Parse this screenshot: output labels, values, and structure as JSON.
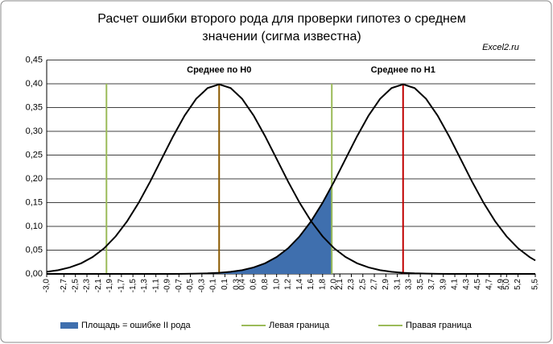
{
  "chart_data": {
    "type": "line",
    "title": [
      "Расчет ошибки второго рода для проверки гипотез о среднем",
      "значении (сигма известна)"
    ],
    "watermark": "Excel2.ru",
    "x": [
      -3.0,
      -2.8,
      -2.6,
      -2.4,
      -2.2,
      -2.0,
      -1.8,
      -1.6,
      -1.4,
      -1.2,
      -1.0,
      -0.8,
      -0.6,
      -0.4,
      -0.2,
      0,
      0.2,
      0.4,
      0.6,
      0.8,
      1.0,
      1.2,
      1.4,
      1.6,
      1.8,
      2.0,
      2.2,
      2.4,
      2.6,
      2.8,
      3.0,
      3.2,
      3.4,
      3.6,
      3.8,
      4.0,
      4.2,
      4.4,
      4.6,
      4.8,
      5.0,
      5.2,
      5.4,
      5.5
    ],
    "series": [
      {
        "color": "#000000",
        "values": [
          0.0044,
          0.0079,
          0.0136,
          0.0224,
          0.0355,
          0.054,
          0.079,
          0.1109,
          0.1497,
          0.1942,
          0.242,
          0.2897,
          0.3332,
          0.3683,
          0.391,
          0.3989,
          0.391,
          0.3683,
          0.3332,
          0.2897,
          0.242,
          0.1942,
          0.1497,
          0.1109,
          0.079,
          0.054,
          0.0355,
          0.0224,
          0.0136,
          0.0079,
          0.0044,
          0.0024,
          0.0012,
          0.0006,
          0.0003,
          0.0001,
          0.0001,
          0,
          0,
          0,
          0,
          0,
          0,
          0
        ]
      },
      {
        "color": "#000000",
        "values": [
          0,
          0,
          0,
          0,
          0,
          0,
          0,
          0,
          0,
          0,
          0.0001,
          0.0001,
          0.0003,
          0.0006,
          0.0012,
          0.0024,
          0.0044,
          0.0079,
          0.0136,
          0.0224,
          0.0355,
          0.054,
          0.079,
          0.1109,
          0.1497,
          0.1942,
          0.242,
          0.2897,
          0.3332,
          0.3683,
          0.391,
          0.3989,
          0.391,
          0.3683,
          0.3332,
          0.2897,
          0.242,
          0.1942,
          0.1497,
          0.1109,
          0.079,
          0.054,
          0.0355,
          0.0283
        ]
      },
      {
        "name": "Площадь = ошибке II рода",
        "color": "#3f6fae",
        "type": "area",
        "x": [
          -1.0,
          -0.8,
          -0.6,
          -0.4,
          -0.2,
          0,
          0.2,
          0.4,
          0.6,
          0.8,
          1.0,
          1.2,
          1.4,
          1.6,
          1.8,
          1.96
        ],
        "values": [
          0.0001,
          0.0001,
          0.0003,
          0.0006,
          0.0012,
          0.0024,
          0.0044,
          0.0079,
          0.0136,
          0.0224,
          0.0355,
          0.054,
          0.079,
          0.1109,
          0.1497,
          0.1849
        ]
      }
    ],
    "vlines": [
      {
        "name": "Левая граница",
        "x": -1.96,
        "values": [
          0,
          0.4
        ],
        "color": "#9bbb59"
      },
      {
        "name": "Правая граница",
        "x": 1.96,
        "values": [
          0,
          0.4
        ],
        "color": "#9bbb59"
      },
      {
        "label": "Среднее по H0",
        "x": 0,
        "values": [
          0,
          0.4
        ],
        "color": "#8b5a00"
      },
      {
        "label": "Среднее по H1",
        "x": 3.2,
        "values": [
          0,
          0.4
        ],
        "color": "#c00000"
      }
    ],
    "xlim": [
      -3.0,
      5.5
    ],
    "xticks": [
      {
        "value": -3.0,
        "label": "-3,0"
      },
      {
        "value": -2.7,
        "label": "-2,7"
      },
      {
        "value": -2.5,
        "label": "-2,5"
      },
      {
        "value": -2.3,
        "label": "-2,3"
      },
      {
        "value": -2.1,
        "label": "-2,1"
      },
      {
        "value": -1.9,
        "label": "-1,9"
      },
      {
        "value": -1.7,
        "label": "-1,7"
      },
      {
        "value": -1.5,
        "label": "-1,5"
      },
      {
        "value": -1.3,
        "label": "-1,3"
      },
      {
        "value": -1.1,
        "label": "-1,1"
      },
      {
        "value": -0.9,
        "label": "-0,9"
      },
      {
        "value": -0.7,
        "label": "-0,7"
      },
      {
        "value": -0.5,
        "label": "-0,5"
      },
      {
        "value": -0.3,
        "label": "-0,3"
      },
      {
        "value": -0.1,
        "label": "-0,1"
      },
      {
        "value": 0.1,
        "label": "0,1"
      },
      {
        "value": 0.3,
        "label": "0,3"
      },
      {
        "value": 0.4,
        "label": "0,4"
      },
      {
        "value": 0.6,
        "label": "0,6"
      },
      {
        "value": 0.8,
        "label": "0,8"
      },
      {
        "value": 1.0,
        "label": "1,0"
      },
      {
        "value": 1.2,
        "label": "1,2"
      },
      {
        "value": 1.4,
        "label": "1,4"
      },
      {
        "value": 1.6,
        "label": "1,6"
      },
      {
        "value": 1.8,
        "label": "1,8"
      },
      {
        "value": 2.0,
        "label": "2,0"
      },
      {
        "value": 2.1,
        "label": "2,1"
      },
      {
        "value": 2.3,
        "label": "2,3"
      },
      {
        "value": 2.5,
        "label": "2,5"
      },
      {
        "value": 2.7,
        "label": "2,7"
      },
      {
        "value": 2.9,
        "label": "2,9"
      },
      {
        "value": 3.1,
        "label": "3,1"
      },
      {
        "value": 3.3,
        "label": "3,3"
      },
      {
        "value": 3.5,
        "label": "3,5"
      },
      {
        "value": 3.7,
        "label": "3,7"
      },
      {
        "value": 3.9,
        "label": "3,9"
      },
      {
        "value": 4.1,
        "label": "4,1"
      },
      {
        "value": 4.3,
        "label": "4,3"
      },
      {
        "value": 4.5,
        "label": "4,5"
      },
      {
        "value": 4.7,
        "label": "4,7"
      },
      {
        "value": 4.9,
        "label": "4,9"
      },
      {
        "value": 5.0,
        "label": "5,0"
      },
      {
        "value": 5.2,
        "label": "5,2"
      },
      {
        "value": 5.5,
        "label": "5,5"
      }
    ],
    "ylim": [
      0,
      0.45
    ],
    "yticks": [
      {
        "value": 0,
        "label": "0,00"
      },
      {
        "value": 0.05,
        "label": "0,05"
      },
      {
        "value": 0.1,
        "label": "0,10"
      },
      {
        "value": 0.15,
        "label": "0,15"
      },
      {
        "value": 0.2,
        "label": "0,20"
      },
      {
        "value": 0.25,
        "label": "0,25"
      },
      {
        "value": 0.3,
        "label": "0,30"
      },
      {
        "value": 0.35,
        "label": "0,35"
      },
      {
        "value": 0.4,
        "label": "0,40"
      },
      {
        "value": 0.45,
        "label": "0,45"
      }
    ],
    "grid": true
  }
}
